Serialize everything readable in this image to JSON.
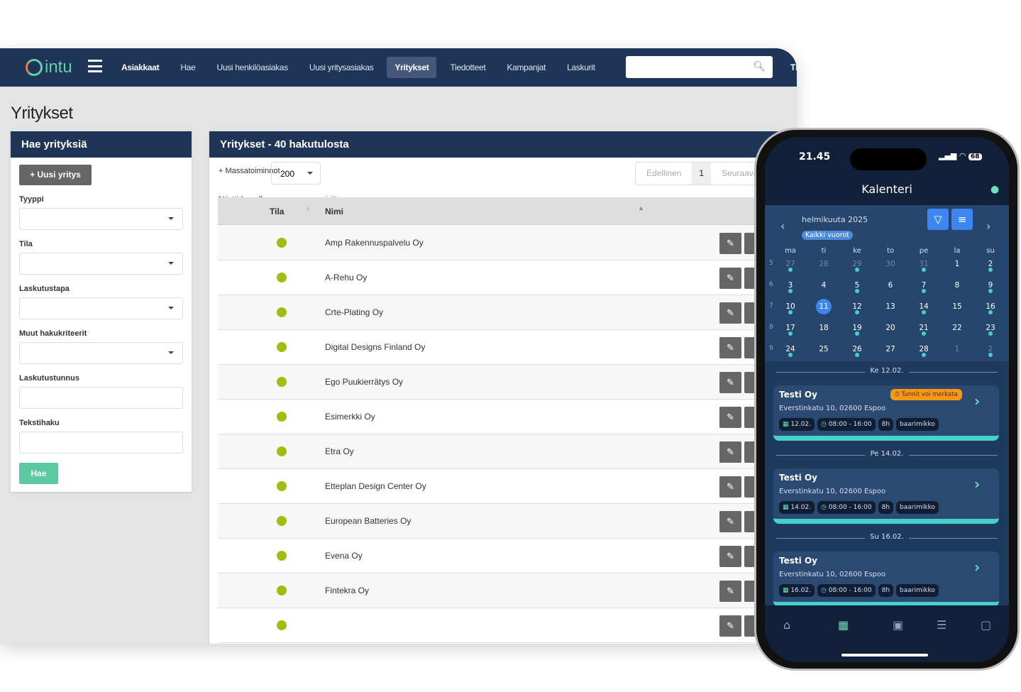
{
  "nav": {
    "logo": "intu",
    "items": [
      {
        "label": "Asiakkaat",
        "style": "bold"
      },
      {
        "label": "Hae"
      },
      {
        "label": "Uusi henkilöasiakas"
      },
      {
        "label": "Uusi yritysasiakas"
      },
      {
        "label": "Yritykset",
        "style": "active"
      },
      {
        "label": "Tiedotteet"
      },
      {
        "label": "Kampanjat"
      },
      {
        "label": "Laskurit"
      }
    ],
    "search_placeholder": "",
    "cut_item": "Ti"
  },
  "page_title": "Yritykset",
  "search_panel": {
    "title": "Hae yrityksiä",
    "new_button": "+ Uusi yritys",
    "fields": [
      {
        "label": "Tyyppi",
        "type": "select"
      },
      {
        "label": "Tila",
        "type": "select"
      },
      {
        "label": "Laskutustapa",
        "type": "select"
      },
      {
        "label": "Muut hakukriteerit",
        "type": "select"
      },
      {
        "label": "Laskutustunnus",
        "type": "text"
      },
      {
        "label": "Tekstihaku",
        "type": "text"
      }
    ],
    "submit": "Hae"
  },
  "results": {
    "title": "Yritykset - 40 hakutulosta",
    "mass_actions": "+ Massatoiminnot",
    "show_label": "Näytä kerralla",
    "page_size": "200",
    "rows_label": "riviä",
    "pager": {
      "prev": "Edellinen",
      "current": "1",
      "next": "Seuraava"
    },
    "columns": [
      "Tila",
      "Nimi"
    ],
    "rows": [
      {
        "name": "Amp Rakennuspalvelu Oy",
        "status": "active"
      },
      {
        "name": "A-Rehu Oy",
        "status": "active"
      },
      {
        "name": "Crte-Plating Oy",
        "status": "active"
      },
      {
        "name": "Digital Designs Finland Oy",
        "status": "active"
      },
      {
        "name": "Ego Puukierrätys Oy",
        "status": "active"
      },
      {
        "name": "Esimerkki Oy",
        "status": "active"
      },
      {
        "name": "Etra Oy",
        "status": "active"
      },
      {
        "name": "Etteplan Design Center Oy",
        "status": "active"
      },
      {
        "name": "European Batteries Oy",
        "status": "active"
      },
      {
        "name": "Evena Oy",
        "status": "active"
      },
      {
        "name": "Fintekra Oy",
        "status": "active"
      },
      {
        "name": "",
        "status": "active"
      }
    ],
    "status_color": "#9fbf10"
  },
  "phone": {
    "time": "21.45",
    "battery": "68",
    "title": "Kalenteri",
    "month": "helmikuuta 2025",
    "filter_chip": "Kaikki vuorot",
    "weekdays": [
      "ma",
      "ti",
      "ke",
      "to",
      "pe",
      "la",
      "su"
    ],
    "weeks": [
      {
        "n": "5",
        "days": [
          {
            "d": "27",
            "m": true,
            "dot": true
          },
          {
            "d": "28",
            "m": true
          },
          {
            "d": "29",
            "m": true,
            "dot": true
          },
          {
            "d": "30",
            "m": true
          },
          {
            "d": "31",
            "m": true,
            "dot": true
          },
          {
            "d": "1"
          },
          {
            "d": "2",
            "dot": true
          }
        ]
      },
      {
        "n": "6",
        "days": [
          {
            "d": "3",
            "dot": true
          },
          {
            "d": "4"
          },
          {
            "d": "5",
            "dot": true
          },
          {
            "d": "6"
          },
          {
            "d": "7",
            "dot": true
          },
          {
            "d": "8"
          },
          {
            "d": "9",
            "dot": true
          }
        ]
      },
      {
        "n": "7",
        "days": [
          {
            "d": "10",
            "dot": true
          },
          {
            "d": "11",
            "sel": true
          },
          {
            "d": "12",
            "dot": true
          },
          {
            "d": "13"
          },
          {
            "d": "14",
            "dot": true
          },
          {
            "d": "15"
          },
          {
            "d": "16",
            "dot": true
          }
        ]
      },
      {
        "n": "8",
        "days": [
          {
            "d": "17",
            "dot": true
          },
          {
            "d": "18"
          },
          {
            "d": "19",
            "dot": true
          },
          {
            "d": "20"
          },
          {
            "d": "21",
            "dot": true
          },
          {
            "d": "22"
          },
          {
            "d": "23",
            "dot": true
          }
        ]
      },
      {
        "n": "9",
        "days": [
          {
            "d": "24",
            "dot": true
          },
          {
            "d": "25"
          },
          {
            "d": "26",
            "dot": true
          },
          {
            "d": "27"
          },
          {
            "d": "28",
            "dot": true
          },
          {
            "d": "1",
            "m": true
          },
          {
            "d": "2",
            "m": true,
            "dot": true
          }
        ]
      }
    ],
    "shifts": [
      {
        "date_header": "Ke 12.02.",
        "company": "Testi Oy",
        "address": "Everstinkatu 10, 02600 Espoo",
        "date": "12.02.",
        "time": "08:00 - 16:00",
        "hours": "8h",
        "role": "baarimikko",
        "badge": "Tunnit voi merkata"
      },
      {
        "date_header": "Pe 14.02.",
        "company": "Testi Oy",
        "address": "Everstinkatu 10, 02600 Espoo",
        "date": "14.02.",
        "time": "08:00 - 16:00",
        "hours": "8h",
        "role": "baarimikko"
      },
      {
        "date_header": "Su 16.02.",
        "company": "Testi Oy",
        "address": "Everstinkatu 10, 02600 Espoo",
        "date": "16.02.",
        "time": "08:00 - 16:00",
        "hours": "8h",
        "role": "baarimikko"
      }
    ],
    "tabs": [
      "home-icon",
      "calendar-icon",
      "calendar-day-icon",
      "list-icon",
      "chat-icon"
    ],
    "active_tab": "calendar-icon"
  },
  "colors": {
    "navy": "#1f3558",
    "accent_green": "#5bc9a1",
    "teal": "#45d0cc",
    "blue": "#3d86f2",
    "orange": "#f59a10"
  }
}
